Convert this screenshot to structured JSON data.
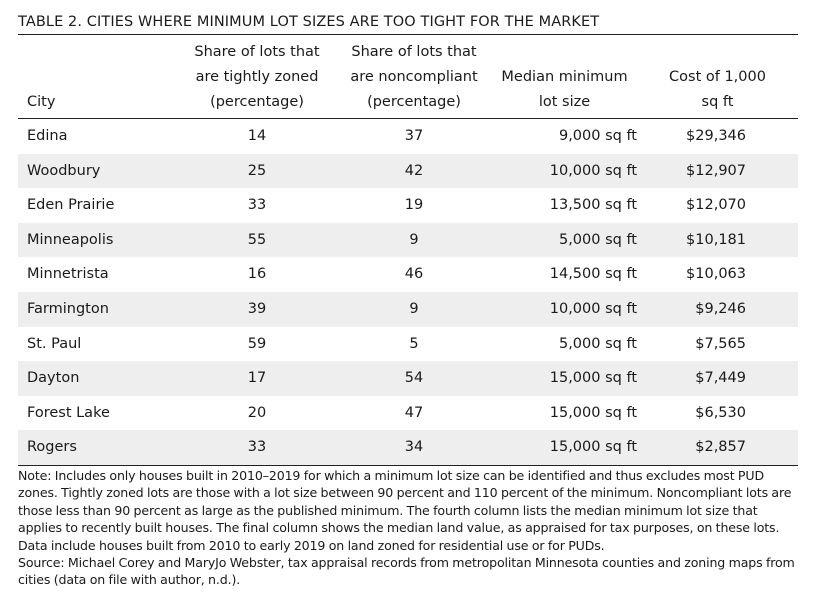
{
  "title": "TABLE 2. CITIES WHERE MINIMUM LOT SIZES ARE TOO TIGHT FOR THE MARKET",
  "headers": [
    [
      "City"
    ],
    [
      "Share of lots that",
      "are tightly zoned",
      "(percentage)"
    ],
    [
      "Share of lots that",
      "are noncompliant",
      "(percentage)"
    ],
    [
      "Median minimum",
      "lot size"
    ],
    [
      "Cost of 1,000",
      "sq ft"
    ]
  ],
  "rows": [
    {
      "city": "Edina",
      "tight": "14",
      "noncompliant": "37",
      "lot_size": "9,000 sq ft",
      "cost": "$29,346"
    },
    {
      "city": "Woodbury",
      "tight": "25",
      "noncompliant": "42",
      "lot_size": "10,000 sq ft",
      "cost": "$12,907"
    },
    {
      "city": "Eden Prairie",
      "tight": "33",
      "noncompliant": "19",
      "lot_size": "13,500 sq ft",
      "cost": "$12,070"
    },
    {
      "city": "Minneapolis",
      "tight": "55",
      "noncompliant": "9",
      "lot_size": "5,000 sq ft",
      "cost": "$10,181"
    },
    {
      "city": "Minnetrista",
      "tight": "16",
      "noncompliant": "46",
      "lot_size": "14,500 sq ft",
      "cost": "$10,063"
    },
    {
      "city": "Farmington",
      "tight": "39",
      "noncompliant": "9",
      "lot_size": "10,000 sq ft",
      "cost": "$9,246"
    },
    {
      "city": "St. Paul",
      "tight": "59",
      "noncompliant": "5",
      "lot_size": "5,000 sq ft",
      "cost": "$7,565"
    },
    {
      "city": "Dayton",
      "tight": "17",
      "noncompliant": "54",
      "lot_size": "15,000 sq ft",
      "cost": "$7,449"
    },
    {
      "city": "Forest Lake",
      "tight": "20",
      "noncompliant": "47",
      "lot_size": "15,000 sq ft",
      "cost": "$6,530"
    },
    {
      "city": "Rogers",
      "tight": "33",
      "noncompliant": "34",
      "lot_size": "15,000 sq ft",
      "cost": "$2,857"
    }
  ],
  "note": "Note: Includes only houses built in 2010–2019 for which a minimum lot size can be identified and thus excludes most PUD zones. Tightly zoned lots are those with a lot size between 90 percent and 110 percent of the minimum. Noncompliant lots are those less than 90 percent as large as the published minimum. The fourth column lists the median minimum lot size that applies to recently built houses. The final column shows the median land value, as appraised for tax purposes, on these lots. Data include houses built from 2010 to early 2019 on land zoned for residential use or for PUDs.",
  "source": "Source: Michael Corey and MaryJo Webster, tax appraisal records from metropolitan Minnesota counties and zoning maps from cities (data on file with author, n.d.)."
}
